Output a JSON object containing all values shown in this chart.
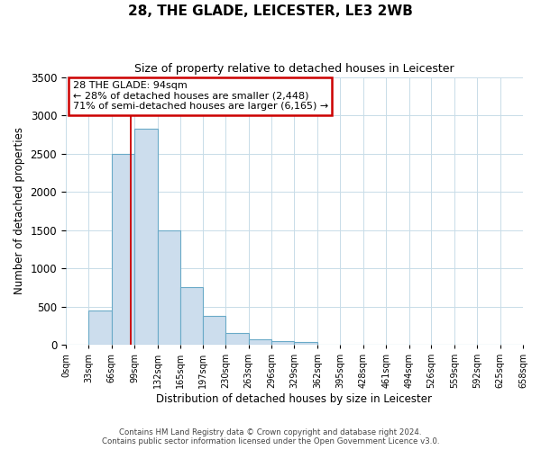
{
  "title": "28, THE GLADE, LEICESTER, LE3 2WB",
  "subtitle": "Size of property relative to detached houses in Leicester",
  "xlabel": "Distribution of detached houses by size in Leicester",
  "ylabel": "Number of detached properties",
  "bar_edges": [
    0,
    33,
    66,
    99,
    132,
    165,
    197,
    230,
    263,
    296,
    329,
    362,
    395,
    428,
    461,
    494,
    526,
    559,
    592,
    625,
    658
  ],
  "bar_heights": [
    0,
    450,
    2500,
    2820,
    1500,
    750,
    380,
    150,
    75,
    50,
    30,
    0,
    0,
    0,
    0,
    0,
    0,
    0,
    0,
    0
  ],
  "tick_labels": [
    "0sqm",
    "33sqm",
    "66sqm",
    "99sqm",
    "132sqm",
    "165sqm",
    "197sqm",
    "230sqm",
    "263sqm",
    "296sqm",
    "329sqm",
    "362sqm",
    "395sqm",
    "428sqm",
    "461sqm",
    "494sqm",
    "526sqm",
    "559sqm",
    "592sqm",
    "625sqm",
    "658sqm"
  ],
  "bar_color": "#ccdded",
  "bar_edge_color": "#6aaac8",
  "property_line_x": 94,
  "property_line_color": "#cc0000",
  "annotation_line1": "28 THE GLADE: 94sqm",
  "annotation_line2": "← 28% of detached houses are smaller (2,448)",
  "annotation_line3": "71% of semi-detached houses are larger (6,165) →",
  "ylim": [
    0,
    3500
  ],
  "yticks": [
    0,
    500,
    1000,
    1500,
    2000,
    2500,
    3000,
    3500
  ],
  "footer_line1": "Contains HM Land Registry data © Crown copyright and database right 2024.",
  "footer_line2": "Contains public sector information licensed under the Open Government Licence v3.0.",
  "background_color": "#ffffff",
  "grid_color": "#c8dce8"
}
